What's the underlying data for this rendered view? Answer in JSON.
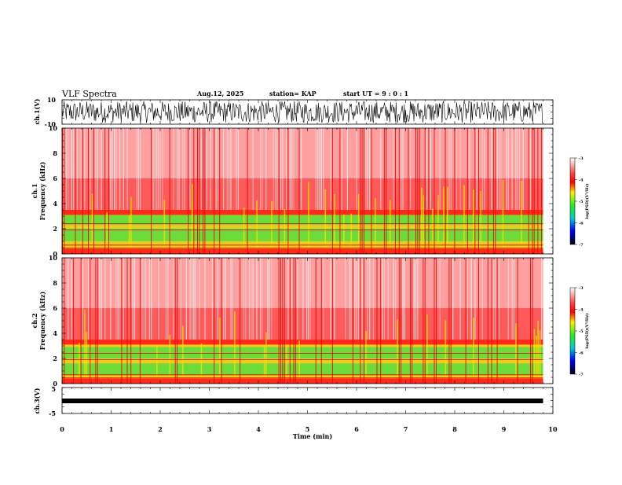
{
  "header": {
    "title": "VLF Spectra",
    "date": "Aug.12, 2025",
    "station": "station= KAP",
    "start": "start  UT  =   9 : 0  : 1"
  },
  "chart_data": [
    {
      "type": "line",
      "name": "ch1-waveform",
      "ylabel": "ch.1(V)",
      "ylim": [
        -10,
        10
      ],
      "yticks": [
        "10",
        "-10"
      ],
      "xlim": [
        0,
        10
      ]
    },
    {
      "type": "heatmap",
      "name": "ch1-spectrogram",
      "ylabel": "ch.1",
      "ylabel2": "Frequency  (kHz)",
      "ylim": [
        0,
        10
      ],
      "yticks": [
        "0",
        "2",
        "4",
        "6",
        "8",
        "10"
      ],
      "xlim": [
        0,
        10
      ],
      "data_extent_min": 9.8,
      "colorbar": {
        "label": "log(PSD)(V²/Hz)",
        "ticks": [
          "-3",
          "-4",
          "-5",
          "-6",
          "-7"
        ],
        "range": [
          -7,
          -3
        ]
      }
    },
    {
      "type": "heatmap",
      "name": "ch2-spectrogram",
      "ylabel": "ch.2",
      "ylabel2": "Frequency  (kHz)",
      "ylim": [
        0,
        10
      ],
      "yticks": [
        "0",
        "2",
        "4",
        "6",
        "8",
        "10"
      ],
      "xlim": [
        0,
        10
      ],
      "data_extent_min": 9.8,
      "colorbar": {
        "label": "log(PSD)(V²/Hz)",
        "ticks": [
          "-3",
          "-4",
          "-5",
          "-6",
          "-7"
        ],
        "range": [
          -7,
          -3
        ]
      }
    },
    {
      "type": "line",
      "name": "ch3-waveform",
      "ylabel": "ch.3(V)",
      "ylim": [
        -5,
        5
      ],
      "yticks": [
        "5",
        "-5"
      ],
      "xlim": [
        0,
        10
      ],
      "xlabel": "Time  (min)",
      "xticks": [
        "0",
        "1",
        "2",
        "3",
        "4",
        "5",
        "6",
        "7",
        "8",
        "9",
        "10"
      ]
    }
  ],
  "colors": {
    "background": "#ffffff",
    "waveform": "#000000",
    "psd_high": "#ff0000",
    "psd_mid": "#ffee00",
    "psd_green": "#33ee33",
    "psd_low": "#0000cc"
  }
}
